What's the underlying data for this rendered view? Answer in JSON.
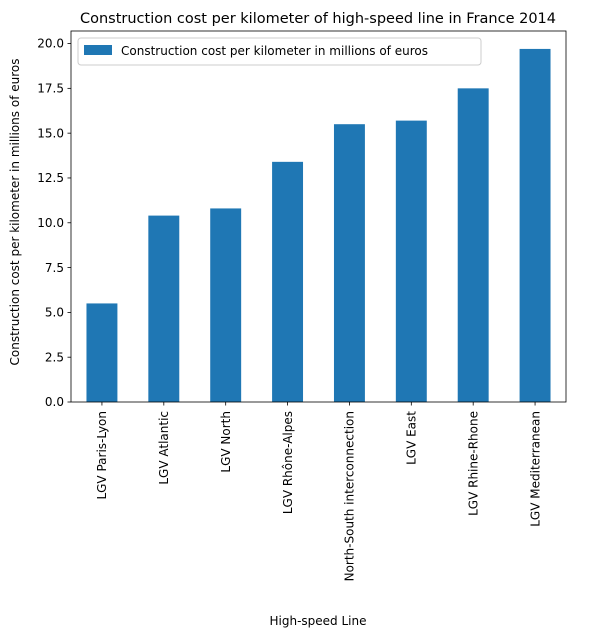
{
  "chart_data": {
    "type": "bar",
    "title": "Construction cost per kilometer of high-speed line in France 2014",
    "xlabel": "High-speed Line",
    "ylabel": "Construction cost per kilometer in millions of euros",
    "categories": [
      "LGV Paris-Lyon",
      "LGV Atlantic",
      "LGV North",
      "LGV Rhône-Alpes",
      "North-South interconnection",
      "LGV East",
      "LGV Rhine-Rhone",
      "LGV Mediterranean"
    ],
    "series": [
      {
        "name": "Construction cost per kilometer in millions of euros",
        "values": [
          5.5,
          10.4,
          10.8,
          13.4,
          15.5,
          15.7,
          17.5,
          19.7
        ],
        "color": "#1f77b4"
      }
    ],
    "ylim": [
      0,
      20.7
    ],
    "yticks": [
      "0.0",
      "2.5",
      "5.0",
      "7.5",
      "10.0",
      "12.5",
      "15.0",
      "17.5",
      "20.0"
    ],
    "grid": false,
    "legend_position": "top-left"
  }
}
